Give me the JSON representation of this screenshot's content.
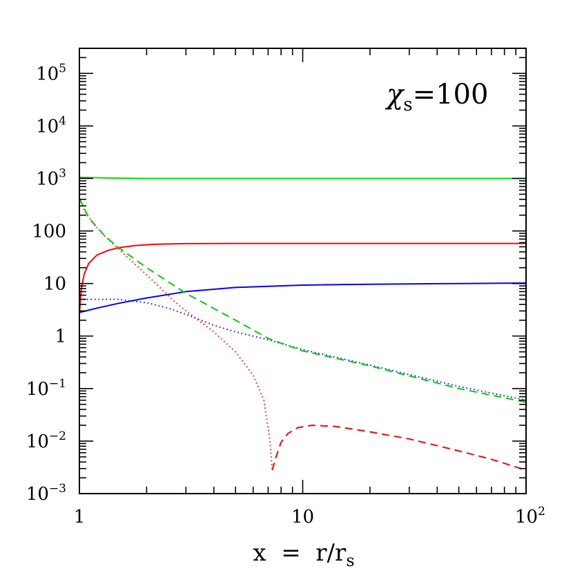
{
  "chart_data": {
    "type": "line",
    "title": "",
    "xlabel": "x  =  r/r",
    "xlabel_sub": "s",
    "ylabel": "",
    "xscale": "log",
    "yscale": "log",
    "xlim": [
      1,
      100
    ],
    "ylim": [
      0.001,
      300000
    ],
    "grid": false,
    "legend": "none",
    "annotation": {
      "symbol": "χ",
      "sub": "s",
      "text": "=100"
    },
    "x_ticks": [
      {
        "value": 1,
        "label": "1",
        "base": "",
        "exp": ""
      },
      {
        "value": 10,
        "label": "10",
        "base": "",
        "exp": ""
      },
      {
        "value": 100,
        "label": "",
        "base": "10",
        "exp": "2"
      }
    ],
    "y_ticks": [
      {
        "value": 0.001,
        "label": "",
        "base": "10",
        "exp": "−3"
      },
      {
        "value": 0.01,
        "label": "",
        "base": "10",
        "exp": "−2"
      },
      {
        "value": 0.1,
        "label": "",
        "base": "10",
        "exp": "−1"
      },
      {
        "value": 1,
        "label": "1",
        "base": "",
        "exp": ""
      },
      {
        "value": 10,
        "label": "10",
        "base": "",
        "exp": ""
      },
      {
        "value": 100,
        "label": "100",
        "base": "",
        "exp": ""
      },
      {
        "value": 1000,
        "label": "",
        "base": "10",
        "exp": "3"
      },
      {
        "value": 10000,
        "label": "",
        "base": "10",
        "exp": "4"
      },
      {
        "value": 100000,
        "label": "",
        "base": "10",
        "exp": "5"
      }
    ],
    "series": [
      {
        "color": "#00dd00",
        "dash": "solid",
        "points": [
          [
            1,
            1050
          ],
          [
            1.5,
            1010
          ],
          [
            2,
            1000
          ],
          [
            5,
            1000
          ],
          [
            10,
            1000
          ],
          [
            30,
            1000
          ],
          [
            100,
            1000
          ]
        ]
      },
      {
        "color": "#ff0000",
        "dash": "solid",
        "points": [
          [
            1,
            2.6
          ],
          [
            1.02,
            8
          ],
          [
            1.05,
            15
          ],
          [
            1.1,
            24
          ],
          [
            1.2,
            35
          ],
          [
            1.35,
            43
          ],
          [
            1.5,
            48
          ],
          [
            1.8,
            53
          ],
          [
            2.2,
            56
          ],
          [
            3,
            57.5
          ],
          [
            5,
            58
          ],
          [
            10,
            58
          ],
          [
            30,
            58
          ],
          [
            100,
            58
          ]
        ]
      },
      {
        "color": "#0000ff",
        "dash": "solid",
        "points": [
          [
            1,
            2.8
          ],
          [
            1.2,
            3.4
          ],
          [
            1.5,
            4.2
          ],
          [
            2,
            5.3
          ],
          [
            3,
            7
          ],
          [
            5,
            8.4
          ],
          [
            10,
            9.3
          ],
          [
            20,
            9.7
          ],
          [
            50,
            10
          ],
          [
            100,
            10.2
          ]
        ]
      },
      {
        "color": "#ff0000",
        "dash": "dotted",
        "points": [
          [
            1,
            420
          ],
          [
            1.05,
            250
          ],
          [
            1.15,
            140
          ],
          [
            1.3,
            80
          ],
          [
            1.5,
            45
          ],
          [
            1.8,
            22
          ],
          [
            2.2,
            10
          ],
          [
            2.6,
            5
          ],
          [
            3,
            3
          ],
          [
            4,
            1.2
          ],
          [
            5,
            0.5
          ],
          [
            6,
            0.18
          ],
          [
            6.7,
            0.06
          ],
          [
            7.1,
            0.012
          ],
          [
            7.3,
            0.003
          ]
        ]
      },
      {
        "color": "#ff0000",
        "dash": "dashed",
        "points": [
          [
            7.3,
            0.0028
          ],
          [
            7.6,
            0.005
          ],
          [
            8,
            0.0095
          ],
          [
            8.6,
            0.014
          ],
          [
            9.5,
            0.018
          ],
          [
            11,
            0.02
          ],
          [
            14,
            0.019
          ],
          [
            20,
            0.015
          ],
          [
            30,
            0.011
          ],
          [
            50,
            0.0065
          ],
          [
            70,
            0.0045
          ],
          [
            100,
            0.0028
          ]
        ]
      },
      {
        "color": "#0000ff",
        "dash": "dotted",
        "points": [
          [
            1,
            5
          ],
          [
            1.5,
            5
          ],
          [
            2,
            4.3
          ],
          [
            2.5,
            3.4
          ],
          [
            3,
            2.6
          ],
          [
            4,
            1.6
          ],
          [
            5,
            1.2
          ],
          [
            7,
            0.85
          ],
          [
            10,
            0.55
          ],
          [
            20,
            0.28
          ],
          [
            50,
            0.11
          ],
          [
            100,
            0.06
          ]
        ]
      },
      {
        "color": "#00cc00",
        "dash": "dashed",
        "points": [
          [
            1,
            420
          ],
          [
            1.1,
            180
          ],
          [
            1.3,
            80
          ],
          [
            1.5,
            48
          ],
          [
            2,
            20
          ],
          [
            3,
            6.5
          ],
          [
            5,
            2
          ],
          [
            7,
            0.9
          ],
          [
            10,
            0.52
          ],
          [
            20,
            0.27
          ],
          [
            50,
            0.1
          ],
          [
            100,
            0.055
          ]
        ]
      }
    ]
  }
}
